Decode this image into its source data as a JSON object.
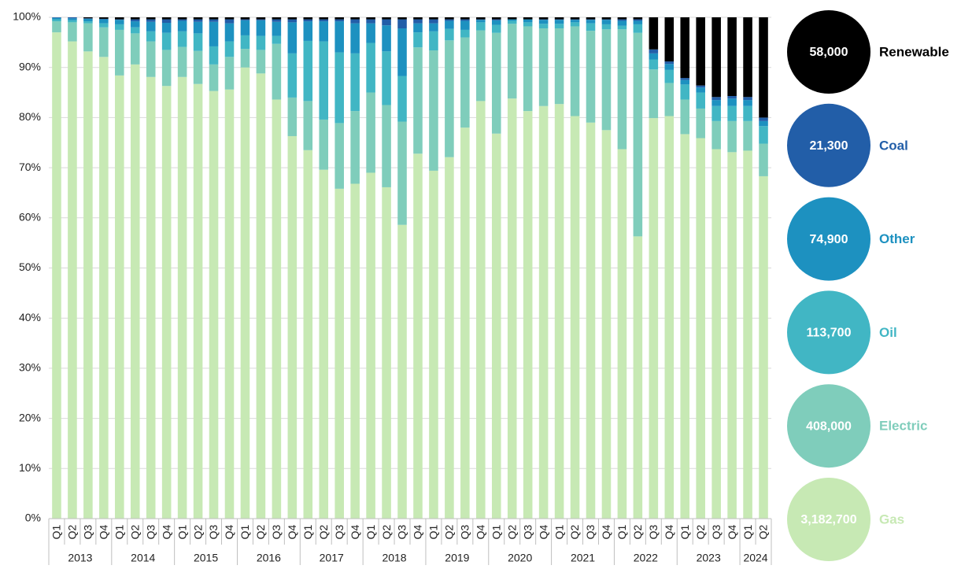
{
  "chart_data": {
    "type": "stacked_bar_100",
    "categories": [
      "Q1",
      "Q2",
      "Q3",
      "Q4",
      "Q1",
      "Q2",
      "Q3",
      "Q4",
      "Q1",
      "Q2",
      "Q3",
      "Q4",
      "Q1",
      "Q2",
      "Q3",
      "Q4",
      "Q1",
      "Q2",
      "Q3",
      "Q4",
      "Q1",
      "Q2",
      "Q3",
      "Q4",
      "Q1",
      "Q2",
      "Q3",
      "Q4",
      "Q1",
      "Q2",
      "Q3",
      "Q4",
      "Q1",
      "Q2",
      "Q3",
      "Q4",
      "Q1",
      "Q2",
      "Q3",
      "Q4",
      "Q1",
      "Q2",
      "Q3",
      "Q4",
      "Q1",
      "Q2"
    ],
    "x_groups": [
      "2013",
      "2014",
      "2015",
      "2016",
      "2017",
      "2018",
      "2019",
      "2020",
      "2021",
      "2022",
      "2023",
      "2024"
    ],
    "ylim": [
      0,
      100
    ],
    "yticks": [
      {
        "value": 0,
        "label": "0%"
      },
      {
        "value": 10,
        "label": "10%"
      },
      {
        "value": 20,
        "label": "20%"
      },
      {
        "value": 30,
        "label": "30%"
      },
      {
        "value": 40,
        "label": "40%"
      },
      {
        "value": 50,
        "label": "50%"
      },
      {
        "value": 60,
        "label": "60%"
      },
      {
        "value": 70,
        "label": "70%"
      },
      {
        "value": 80,
        "label": "80%"
      },
      {
        "value": 90,
        "label": "90%"
      },
      {
        "value": 100,
        "label": "100%"
      }
    ],
    "grid": true,
    "legend": "right",
    "series": [
      {
        "name": "Gas",
        "color": "#c7e9b4",
        "total": 3182700,
        "total_label": "3,182,700",
        "values": [
          97,
          95.2,
          93.2,
          92.1,
          88.4,
          90.6,
          88.1,
          86.3,
          88.1,
          86.7,
          85.3,
          85.6,
          90,
          88.8,
          83.6,
          76.3,
          73.5,
          69.6,
          65.8,
          66.8,
          69,
          66.1,
          58.6,
          72.8,
          69.4,
          72.1,
          78,
          83.3,
          76.8,
          83.8,
          81.3,
          82.3,
          82.7,
          80.3,
          79,
          77.5,
          73.7,
          56.3,
          79.9,
          80.3,
          76.7,
          75.9,
          73.7,
          73.1,
          73.4,
          68.3
        ]
      },
      {
        "name": "Electric",
        "color": "#7fcdbb",
        "total": 408000,
        "total_label": "408,000",
        "values": [
          2.2,
          3.8,
          5.6,
          5.9,
          9.1,
          6.2,
          7.1,
          7.2,
          6.0,
          6.6,
          5.3,
          6.5,
          3.7,
          4.7,
          11.1,
          7.7,
          9.8,
          10.0,
          13.1,
          14.5,
          16.0,
          16.4,
          20.6,
          21.2,
          24.0,
          23.3,
          18.0,
          14.1,
          20.1,
          14.9,
          16.9,
          15.5,
          15.1,
          17.9,
          18.3,
          20.1,
          23.9,
          40.6,
          9.7,
          6.6,
          6.9,
          5.9,
          5.6,
          6.2,
          5.9,
          6.5
        ]
      },
      {
        "name": "Oil",
        "color": "#41b6c4",
        "total": 113700,
        "total_label": "113,700",
        "values": [
          0.4,
          0.4,
          0.4,
          0.8,
          1.1,
          1.2,
          2.0,
          3.4,
          3.1,
          3.5,
          3.6,
          3.1,
          2.7,
          2.8,
          1.6,
          8.8,
          12.0,
          15.6,
          14.1,
          11.5,
          9.9,
          10.7,
          9.1,
          3.0,
          3.8,
          2.3,
          1.5,
          1.6,
          1.6,
          0.6,
          0.8,
          0.9,
          0.9,
          0.8,
          1.5,
          1.0,
          0.7,
          1.7,
          2.0,
          2.6,
          3.0,
          3.2,
          3.0,
          3.0,
          3.0,
          3.5
        ]
      },
      {
        "name": "Other",
        "color": "#1d91c0",
        "total": 74900,
        "total_label": "74,900",
        "values": [
          0.3,
          0.4,
          0.5,
          0.8,
          0.9,
          1.2,
          1.9,
          2.0,
          2.1,
          2.3,
          4.9,
          3.6,
          3.0,
          3.1,
          2.8,
          6.2,
          3.9,
          4.0,
          6.2,
          6.0,
          3.9,
          5.2,
          9.5,
          1.8,
          1.6,
          1.6,
          1.8,
          0.5,
          0.9,
          0.3,
          0.6,
          0.8,
          0.8,
          0.5,
          0.7,
          0.9,
          1.0,
          0.7,
          1.2,
          1.2,
          0.9,
          1.0,
          1.2,
          1.5,
          1.2,
          1.0
        ]
      },
      {
        "name": "Coal",
        "color": "#225ea8",
        "total": 21300,
        "total_label": "21,300",
        "values": [
          0.1,
          0.2,
          0.1,
          0.1,
          0.1,
          0.4,
          0.5,
          0.7,
          0.3,
          0.5,
          0.5,
          0.8,
          0.2,
          0.2,
          0.5,
          0.6,
          0.4,
          0.4,
          0.4,
          0.8,
          0.8,
          1.2,
          1.8,
          0.8,
          0.8,
          0.3,
          0.3,
          0.1,
          0.2,
          0.0,
          0.0,
          0.1,
          0.1,
          0.1,
          0.1,
          0.1,
          0.3,
          0.3,
          0.8,
          0.5,
          0.4,
          0.4,
          0.6,
          0.5,
          0.6,
          0.7
        ]
      },
      {
        "name": "Renewable",
        "color": "#000000",
        "total": 58000,
        "total_label": "58,000",
        "values": [
          0,
          0,
          0.2,
          0.3,
          0.4,
          0.4,
          0.4,
          0.4,
          0.4,
          0.4,
          0.4,
          0.4,
          0.4,
          0.4,
          0.4,
          0.4,
          0.4,
          0.4,
          0.4,
          0.4,
          0.4,
          0.4,
          0.4,
          0.4,
          0.4,
          0.4,
          0.4,
          0.4,
          0.4,
          0.4,
          0.4,
          0.4,
          0.4,
          0.4,
          0.4,
          0.4,
          0.4,
          0.4,
          6.4,
          8.8,
          12.1,
          13.6,
          15.9,
          15.7,
          15.9,
          20.0
        ]
      }
    ]
  }
}
